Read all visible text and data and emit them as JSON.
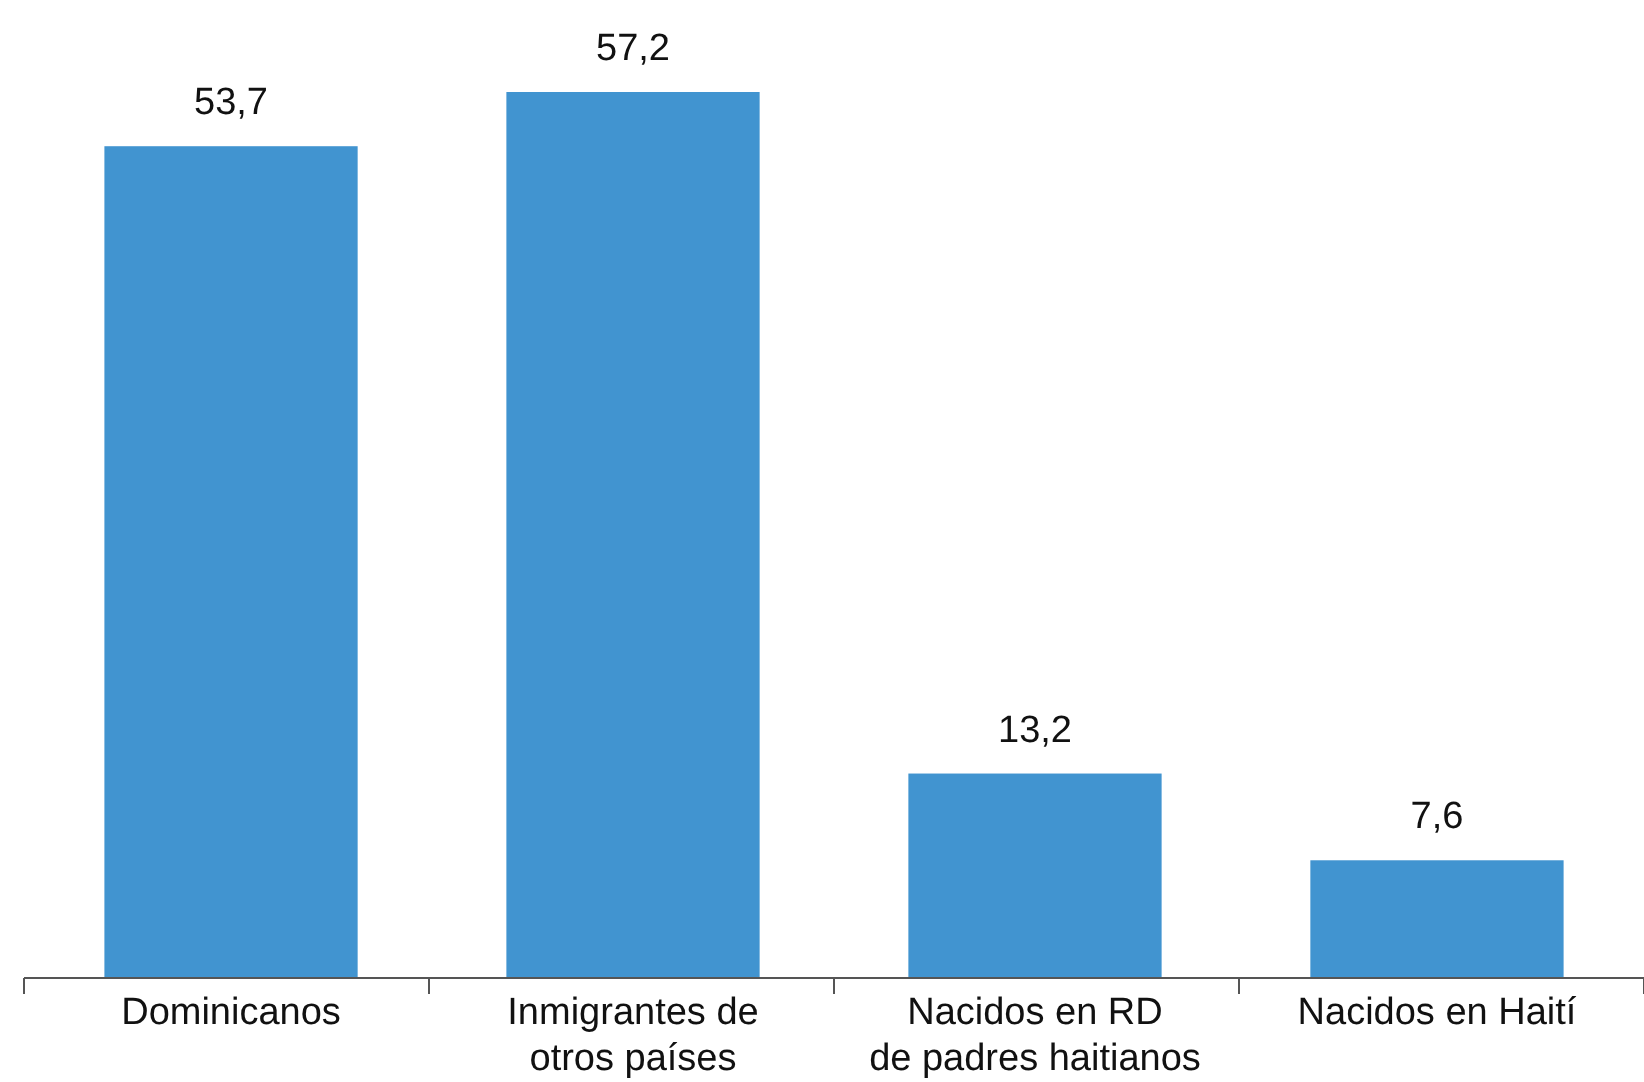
{
  "chart_data": {
    "type": "bar",
    "categories": [
      "Dominicanos",
      "Inmigrantes de\notros países",
      "Nacidos en RD\nde padres haitianos",
      "Nacidos en Haití"
    ],
    "values": [
      53.7,
      57.2,
      13.2,
      7.6
    ],
    "value_labels": [
      "53,7",
      "57,2",
      "13,2",
      "7,6"
    ],
    "color": "#4194d0"
  }
}
